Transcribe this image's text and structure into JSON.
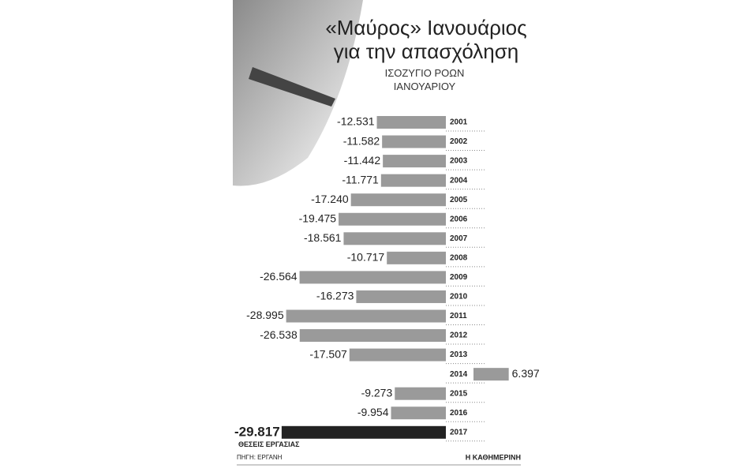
{
  "chart_data": {
    "type": "bar",
    "orientation": "horizontal",
    "title": "«Μαύρος» Ιανουάριος για την απασχόληση",
    "subtitle": "ΙΣΟΖΥΓΙΟ ΡΟΩΝ ΙΑΝΟΥΑΡΙΟΥ",
    "categories": [
      "2001",
      "2002",
      "2003",
      "2004",
      "2005",
      "2006",
      "2007",
      "2008",
      "2009",
      "2010",
      "2011",
      "2012",
      "2013",
      "2014",
      "2015",
      "2016",
      "2017"
    ],
    "values": [
      -12531,
      -11582,
      -11442,
      -11771,
      -17240,
      -19475,
      -18561,
      -10717,
      -26564,
      -16273,
      -28995,
      -26538,
      -17507,
      6397,
      -9273,
      -9954,
      -29817
    ],
    "value_labels": [
      "-12.531",
      "-11.582",
      "-11.442",
      "-11.771",
      "-17.240",
      "-19.475",
      "-18.561",
      "-10.717",
      "-26.564",
      "-16.273",
      "-28.995",
      "-26.538",
      "-17.507",
      "6.397",
      "-9.273",
      "-9.954",
      "-29.817"
    ],
    "colors": [
      "#9a9a9a",
      "#9a9a9a",
      "#9a9a9a",
      "#9a9a9a",
      "#9a9a9a",
      "#9a9a9a",
      "#9a9a9a",
      "#9a9a9a",
      "#9a9a9a",
      "#9a9a9a",
      "#9a9a9a",
      "#9a9a9a",
      "#9a9a9a",
      "#9a9a9a",
      "#9a9a9a",
      "#9a9a9a",
      "#222222"
    ],
    "annotation": "ΘΕΣΕΙΣ ΕΡΓΑΣΙΑΣ",
    "source": "ΠΗΓΗ: ΕΡΓΑΝΗ",
    "publisher": "Η ΚΑΘΗΜΕΡΙΝΗ"
  }
}
